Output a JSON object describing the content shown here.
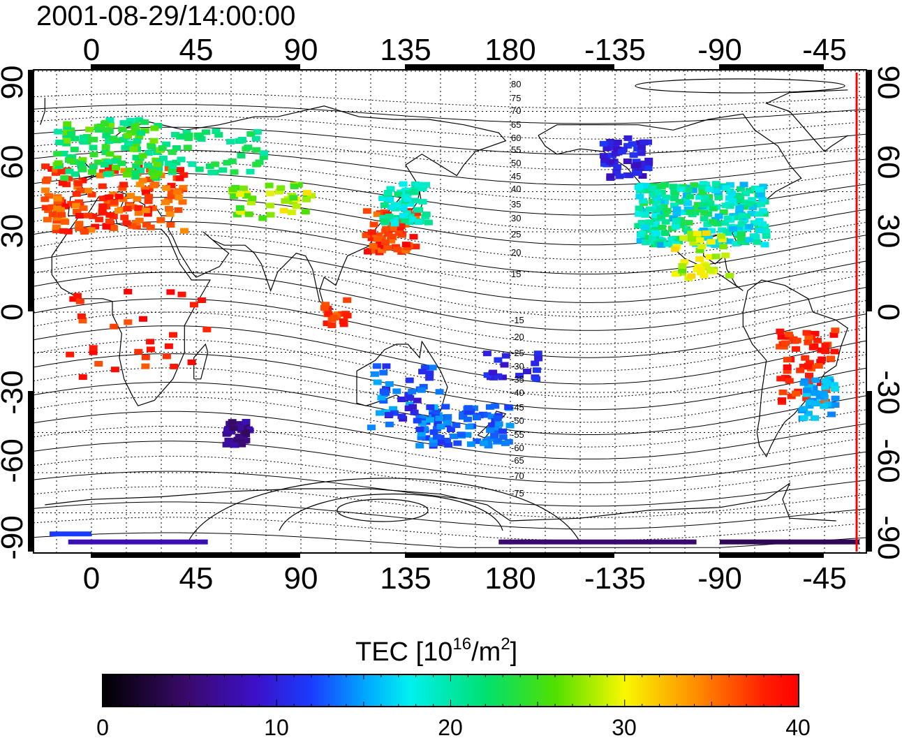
{
  "timestamp": "2001-08-29/14:00:00",
  "lon_ticks": [
    "0",
    "45",
    "90",
    "135",
    "180",
    "-135",
    "-90",
    "-45"
  ],
  "lat_ticks": [
    "90",
    "60",
    "30",
    "0",
    "-30",
    "-60",
    "-90"
  ],
  "colorbar": {
    "label_main": "TEC  [10",
    "label_sup1": "16",
    "label_mid": "/m",
    "label_sup2": "2",
    "label_end": "]",
    "ticks": [
      "0",
      "10",
      "20",
      "30",
      "40"
    ],
    "range": [
      0,
      40
    ]
  },
  "contour_labels": [
    "80",
    "75",
    "70",
    "65",
    "60",
    "55",
    "50",
    "45",
    "40",
    "35",
    "30",
    "25",
    "20",
    "15",
    "-15",
    "-20",
    "-25",
    "-30",
    "-35",
    "-40",
    "-45",
    "-50",
    "-55",
    "-60",
    "-65",
    "-70",
    "-75"
  ],
  "colors": {
    "terminator": "#ff0000"
  }
}
